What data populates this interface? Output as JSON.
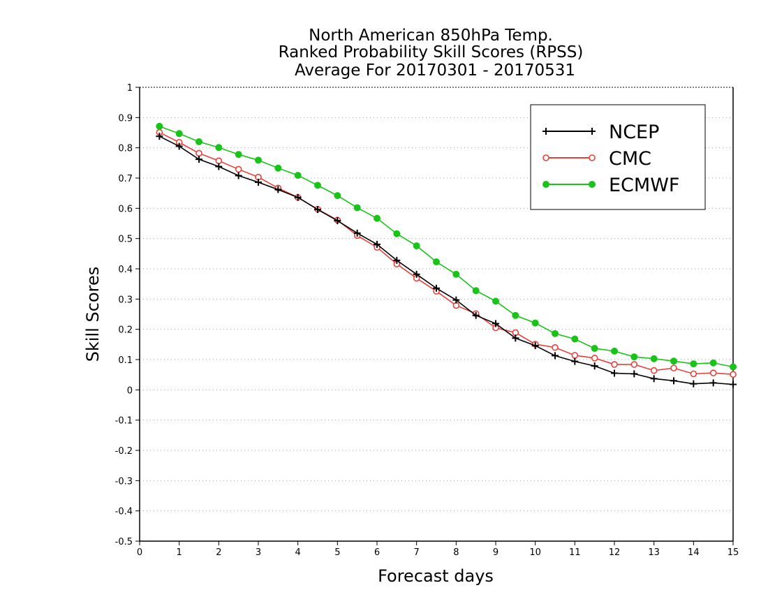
{
  "chart_data": {
    "type": "line",
    "title": [
      "North American 850hPa Temp.",
      "Ranked Probability Skill Scores (RPSS)",
      "Average For 20170301 - 20170531"
    ],
    "xlabel": "Forecast days",
    "ylabel": "Skill Scores",
    "xlim": [
      0,
      15
    ],
    "ylim": [
      -0.5,
      1
    ],
    "x_ticks": [
      0,
      1,
      2,
      3,
      4,
      5,
      6,
      7,
      8,
      9,
      10,
      11,
      12,
      13,
      14,
      15
    ],
    "y_ticks": [
      -0.5,
      -0.4,
      -0.3,
      -0.2,
      -0.1,
      0,
      0.1,
      0.2,
      0.3,
      0.4,
      0.5,
      0.6,
      0.7,
      0.8,
      0.9,
      1
    ],
    "grid": true,
    "legend_position": "top-right",
    "x": [
      0.5,
      1,
      1.5,
      2,
      2.5,
      3,
      3.5,
      4,
      4.5,
      5,
      5.5,
      6,
      6.5,
      7,
      7.5,
      8,
      8.5,
      9,
      9.5,
      10,
      10.5,
      11,
      11.5,
      12,
      12.5,
      13,
      13.5,
      14,
      14.5,
      15
    ],
    "series": [
      {
        "name": "NCEP",
        "color": "#000000",
        "marker": "plus",
        "values": [
          0.838,
          0.805,
          0.762,
          0.738,
          0.708,
          0.686,
          0.662,
          0.636,
          0.596,
          0.559,
          0.518,
          0.481,
          0.428,
          0.382,
          0.336,
          0.297,
          0.246,
          0.219,
          0.171,
          0.146,
          0.113,
          0.094,
          0.079,
          0.055,
          0.053,
          0.037,
          0.03,
          0.02,
          0.023,
          0.018
        ]
      },
      {
        "name": "CMC",
        "color": "#e8403a",
        "marker": "open-circle",
        "values": [
          0.851,
          0.818,
          0.782,
          0.757,
          0.729,
          0.703,
          0.667,
          0.636,
          0.597,
          0.561,
          0.51,
          0.471,
          0.416,
          0.369,
          0.326,
          0.279,
          0.252,
          0.205,
          0.189,
          0.151,
          0.14,
          0.114,
          0.105,
          0.084,
          0.084,
          0.064,
          0.072,
          0.053,
          0.056,
          0.051
        ]
      },
      {
        "name": "ECMWF",
        "color": "#18c418",
        "marker": "filled-circle",
        "values": [
          0.871,
          0.847,
          0.82,
          0.801,
          0.778,
          0.759,
          0.733,
          0.709,
          0.676,
          0.642,
          0.602,
          0.567,
          0.516,
          0.476,
          0.423,
          0.382,
          0.328,
          0.293,
          0.246,
          0.221,
          0.186,
          0.168,
          0.137,
          0.128,
          0.109,
          0.103,
          0.095,
          0.086,
          0.089,
          0.076
        ]
      }
    ]
  }
}
